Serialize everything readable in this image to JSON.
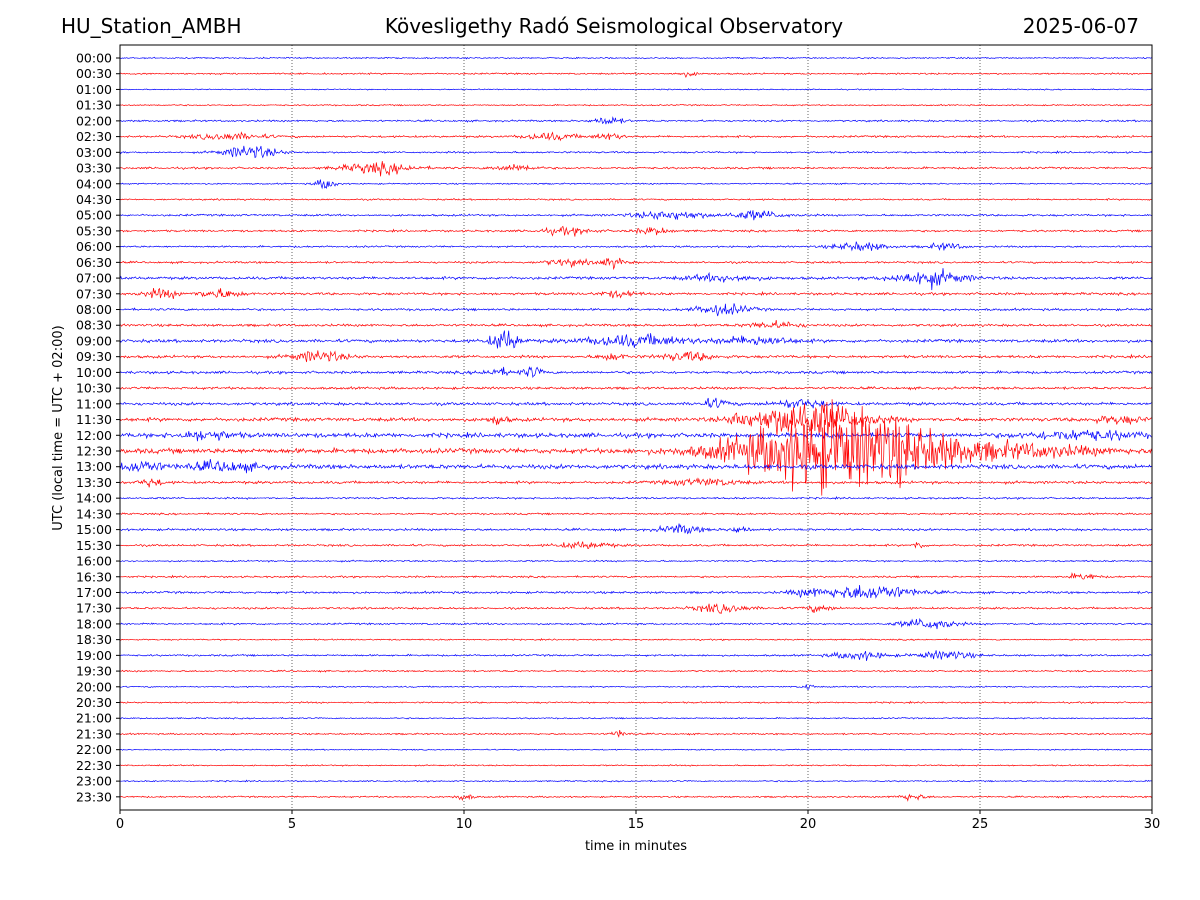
{
  "header": {
    "station": "HU_Station_AMBH",
    "title": "Kövesligethy Radó Seismological Observatory",
    "date": "2025-06-07"
  },
  "colors": {
    "trace_a": "#0000ff",
    "trace_b": "#ff0000",
    "axes": "#000000",
    "grid": "#000000"
  },
  "chart_data": {
    "type": "line",
    "subtype": "helicorder",
    "xlabel": "time in minutes",
    "ylabel": "UTC (local time = UTC + 02:00)",
    "xlim": [
      0,
      30
    ],
    "xticks": [
      0,
      5,
      10,
      15,
      20,
      25,
      30
    ],
    "grid": "vertical dotted at 5-minute ticks",
    "row_labels": [
      "00:00",
      "00:30",
      "01:00",
      "01:30",
      "02:00",
      "02:30",
      "03:00",
      "03:30",
      "04:00",
      "04:30",
      "05:00",
      "05:30",
      "06:00",
      "06:30",
      "07:00",
      "07:30",
      "08:00",
      "08:30",
      "09:00",
      "09:30",
      "10:00",
      "10:30",
      "11:00",
      "11:30",
      "12:00",
      "12:30",
      "13:00",
      "13:30",
      "14:00",
      "14:30",
      "15:00",
      "15:30",
      "16:00",
      "16:30",
      "17:00",
      "17:30",
      "18:00",
      "18:30",
      "19:00",
      "19:30",
      "20:00",
      "20:30",
      "21:00",
      "21:30",
      "22:00",
      "22:30",
      "23:00",
      "23:30"
    ],
    "row_colors": "alternating blue (even rows) / red (odd rows)",
    "base_noise_level": [
      0.6,
      0.7,
      0.5,
      0.6,
      0.8,
      0.9,
      0.8,
      0.9,
      0.6,
      0.7,
      0.9,
      0.9,
      0.8,
      0.9,
      1.2,
      1.1,
      1.0,
      1.1,
      1.4,
      1.2,
      1.2,
      1.1,
      1.3,
      1.6,
      2.0,
      2.2,
      2.0,
      1.2,
      0.8,
      0.8,
      1.0,
      0.9,
      0.7,
      0.8,
      1.0,
      0.9,
      0.8,
      0.6,
      0.8,
      0.7,
      0.6,
      0.7,
      0.6,
      0.7,
      0.5,
      0.6,
      0.6,
      0.7
    ],
    "events": [
      {
        "row": "00:30",
        "minute": 16.5,
        "amplitude": 2,
        "duration": 0.6
      },
      {
        "row": "02:00",
        "minute": 14.2,
        "amplitude": 4,
        "duration": 0.8
      },
      {
        "row": "02:30",
        "minute": 3.2,
        "amplitude": 3,
        "duration": 2.0
      },
      {
        "row": "02:30",
        "minute": 12.5,
        "amplitude": 3,
        "duration": 1.5
      },
      {
        "row": "02:30",
        "minute": 14.2,
        "amplitude": 3,
        "duration": 0.8
      },
      {
        "row": "03:00",
        "minute": 3.8,
        "amplitude": 6,
        "duration": 1.5
      },
      {
        "row": "03:30",
        "minute": 7.5,
        "amplitude": 5,
        "duration": 2.0
      },
      {
        "row": "03:30",
        "minute": 11.5,
        "amplitude": 3,
        "duration": 1.2
      },
      {
        "row": "04:00",
        "minute": 6.0,
        "amplitude": 5,
        "duration": 0.6
      },
      {
        "row": "05:00",
        "minute": 16.0,
        "amplitude": 4,
        "duration": 2.0
      },
      {
        "row": "05:00",
        "minute": 18.5,
        "amplitude": 4,
        "duration": 1.5
      },
      {
        "row": "05:30",
        "minute": 13.0,
        "amplitude": 3,
        "duration": 1.5
      },
      {
        "row": "05:30",
        "minute": 15.5,
        "amplitude": 3,
        "duration": 1.0
      },
      {
        "row": "06:00",
        "minute": 21.5,
        "amplitude": 4,
        "duration": 1.5
      },
      {
        "row": "06:00",
        "minute": 24.0,
        "amplitude": 3,
        "duration": 1.0
      },
      {
        "row": "06:30",
        "minute": 14.3,
        "amplitude": 4,
        "duration": 0.8
      },
      {
        "row": "06:30",
        "minute": 13.0,
        "amplitude": 3,
        "duration": 1.2
      },
      {
        "row": "07:00",
        "minute": 23.5,
        "amplitude": 7,
        "duration": 2.0
      },
      {
        "row": "07:00",
        "minute": 17.5,
        "amplitude": 3,
        "duration": 2.0
      },
      {
        "row": "07:30",
        "minute": 1.2,
        "amplitude": 4,
        "duration": 1.0
      },
      {
        "row": "07:30",
        "minute": 2.9,
        "amplitude": 4,
        "duration": 1.2
      },
      {
        "row": "07:30",
        "minute": 14.5,
        "amplitude": 3,
        "duration": 1.0
      },
      {
        "row": "08:00",
        "minute": 17.5,
        "amplitude": 5,
        "duration": 1.5
      },
      {
        "row": "08:30",
        "minute": 19.0,
        "amplitude": 3,
        "duration": 1.5
      },
      {
        "row": "09:00",
        "minute": 11.2,
        "amplitude": 10,
        "duration": 0.8
      },
      {
        "row": "09:00",
        "minute": 15.0,
        "amplitude": 5,
        "duration": 3.0
      },
      {
        "row": "09:00",
        "minute": 18.5,
        "amplitude": 4,
        "duration": 2.0
      },
      {
        "row": "09:30",
        "minute": 5.8,
        "amplitude": 5,
        "duration": 1.5
      },
      {
        "row": "09:30",
        "minute": 16.5,
        "amplitude": 4,
        "duration": 1.5
      },
      {
        "row": "09:30",
        "minute": 14.3,
        "amplitude": 3,
        "duration": 0.8
      },
      {
        "row": "10:00",
        "minute": 12.0,
        "amplitude": 5,
        "duration": 0.5
      },
      {
        "row": "10:00",
        "minute": 11.0,
        "amplitude": 3,
        "duration": 1.0
      },
      {
        "row": "11:00",
        "minute": 17.3,
        "amplitude": 4,
        "duration": 0.8
      },
      {
        "row": "11:00",
        "minute": 19.8,
        "amplitude": 4,
        "duration": 1.5
      },
      {
        "row": "11:30",
        "minute": 18.0,
        "amplitude": 6,
        "duration": 0.4
      },
      {
        "row": "11:30",
        "minute": 20.0,
        "amplitude": 18,
        "duration": 3.0
      },
      {
        "row": "11:30",
        "minute": 11.0,
        "amplitude": 4,
        "duration": 0.5
      },
      {
        "row": "11:30",
        "minute": 29.0,
        "amplitude": 3,
        "duration": 1.5
      },
      {
        "row": "12:00",
        "minute": 2.5,
        "amplitude": 4,
        "duration": 1.5
      },
      {
        "row": "12:00",
        "minute": 28.0,
        "amplitude": 4,
        "duration": 3.0
      },
      {
        "row": "12:30",
        "minute": 20.5,
        "amplitude": 35,
        "duration": 5.0
      },
      {
        "row": "12:30",
        "minute": 23.0,
        "amplitude": 12,
        "duration": 4.0
      },
      {
        "row": "12:30",
        "minute": 26.5,
        "amplitude": 5,
        "duration": 4.0
      },
      {
        "row": "13:00",
        "minute": 0.6,
        "amplitude": 5,
        "duration": 1.2
      },
      {
        "row": "13:00",
        "minute": 3.0,
        "amplitude": 4,
        "duration": 2.0
      },
      {
        "row": "13:30",
        "minute": 0.9,
        "amplitude": 4,
        "duration": 0.6
      },
      {
        "row": "13:30",
        "minute": 17.0,
        "amplitude": 3,
        "duration": 2.0
      },
      {
        "row": "15:00",
        "minute": 16.3,
        "amplitude": 4,
        "duration": 1.2
      },
      {
        "row": "15:00",
        "minute": 18.0,
        "amplitude": 3,
        "duration": 0.6
      },
      {
        "row": "15:30",
        "minute": 13.5,
        "amplitude": 3,
        "duration": 1.5
      },
      {
        "row": "15:30",
        "minute": 23.2,
        "amplitude": 4,
        "duration": 0.3
      },
      {
        "row": "16:30",
        "minute": 28.0,
        "amplitude": 3,
        "duration": 0.8
      },
      {
        "row": "17:00",
        "minute": 21.8,
        "amplitude": 7,
        "duration": 2.5
      },
      {
        "row": "17:00",
        "minute": 20.0,
        "amplitude": 3,
        "duration": 1.0
      },
      {
        "row": "17:30",
        "minute": 17.5,
        "amplitude": 4,
        "duration": 1.5
      },
      {
        "row": "17:30",
        "minute": 20.3,
        "amplitude": 3,
        "duration": 0.8
      },
      {
        "row": "18:00",
        "minute": 23.5,
        "amplitude": 5,
        "duration": 1.5
      },
      {
        "row": "19:00",
        "minute": 21.5,
        "amplitude": 4,
        "duration": 1.5
      },
      {
        "row": "19:00",
        "minute": 24.0,
        "amplitude": 4,
        "duration": 1.5
      },
      {
        "row": "20:00",
        "minute": 20.0,
        "amplitude": 3,
        "duration": 0.3
      },
      {
        "row": "21:30",
        "minute": 14.5,
        "amplitude": 3,
        "duration": 0.5
      },
      {
        "row": "23:30",
        "minute": 10.0,
        "amplitude": 3,
        "duration": 0.5
      },
      {
        "row": "23:30",
        "minute": 23.0,
        "amplitude": 3,
        "duration": 0.8
      }
    ]
  }
}
